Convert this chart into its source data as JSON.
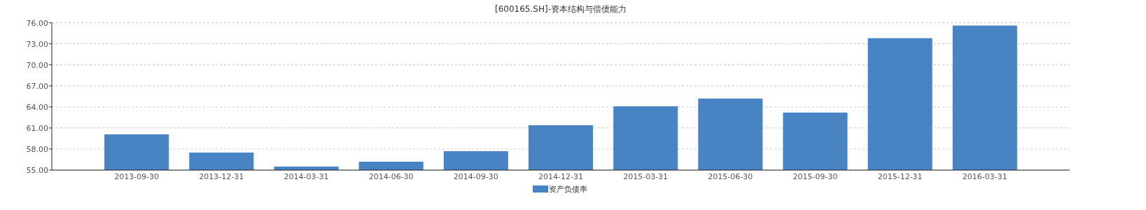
{
  "chart_data": {
    "type": "bar",
    "title": "[600165.SH]-资本结构与偿债能力",
    "categories": [
      "2013-09-30",
      "2013-12-31",
      "2014-03-31",
      "2014-06-30",
      "2014-09-30",
      "2014-12-31",
      "2015-03-31",
      "2015-06-30",
      "2015-09-30",
      "2015-12-31",
      "2016-03-31"
    ],
    "series": [
      {
        "name": "资产负债率",
        "color": "#4884c4",
        "values": [
          60.1,
          57.5,
          55.5,
          56.2,
          57.7,
          61.4,
          64.1,
          65.2,
          63.2,
          73.8,
          75.6
        ]
      }
    ],
    "ylim": [
      55,
      76
    ],
    "yticks": [
      {
        "value": 55,
        "label": "55.00"
      },
      {
        "value": 58,
        "label": "58.00"
      },
      {
        "value": 61,
        "label": "61.00"
      },
      {
        "value": 64,
        "label": "64.00"
      },
      {
        "value": 67,
        "label": "67.00"
      },
      {
        "value": 70,
        "label": "70.00"
      },
      {
        "value": 73,
        "label": "73.00"
      },
      {
        "value": 76,
        "label": "76.00"
      }
    ],
    "grid": "y",
    "legend": "bottom"
  }
}
